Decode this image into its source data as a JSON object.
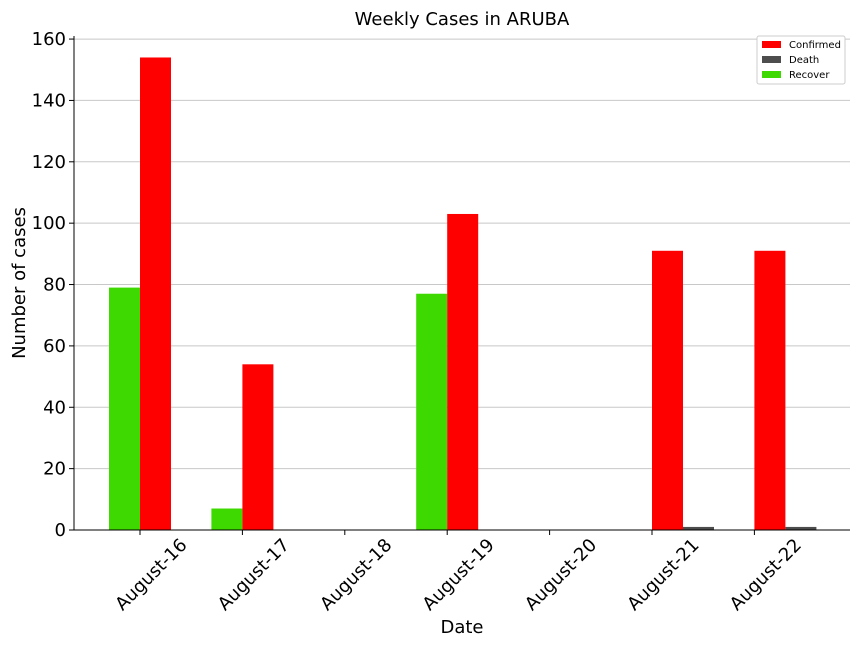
{
  "chart_data": {
    "type": "bar",
    "title": "Weekly Cases in ARUBA",
    "xlabel": "Date",
    "ylabel": "Number of cases",
    "categories": [
      "August-16",
      "August-17",
      "August-18",
      "August-19",
      "August-20",
      "August-21",
      "August-22"
    ],
    "series": [
      {
        "name": "Recover",
        "color": "#3dd900",
        "values": [
          79,
          7,
          0,
          77,
          0,
          0,
          0
        ]
      },
      {
        "name": "Confirmed",
        "color": "#ff0000",
        "values": [
          154,
          54,
          0,
          103,
          0,
          91,
          91
        ]
      },
      {
        "name": "Death",
        "color": "#4d4d4d",
        "values": [
          0,
          0,
          0,
          0,
          0,
          1,
          1
        ]
      }
    ],
    "legend_order": [
      "Confirmed",
      "Death",
      "Recover"
    ],
    "ylim": [
      0,
      161
    ],
    "yticks": [
      0,
      20,
      40,
      60,
      80,
      100,
      120,
      140,
      160
    ],
    "grid": "horizontal",
    "legend_position": "top-right"
  }
}
